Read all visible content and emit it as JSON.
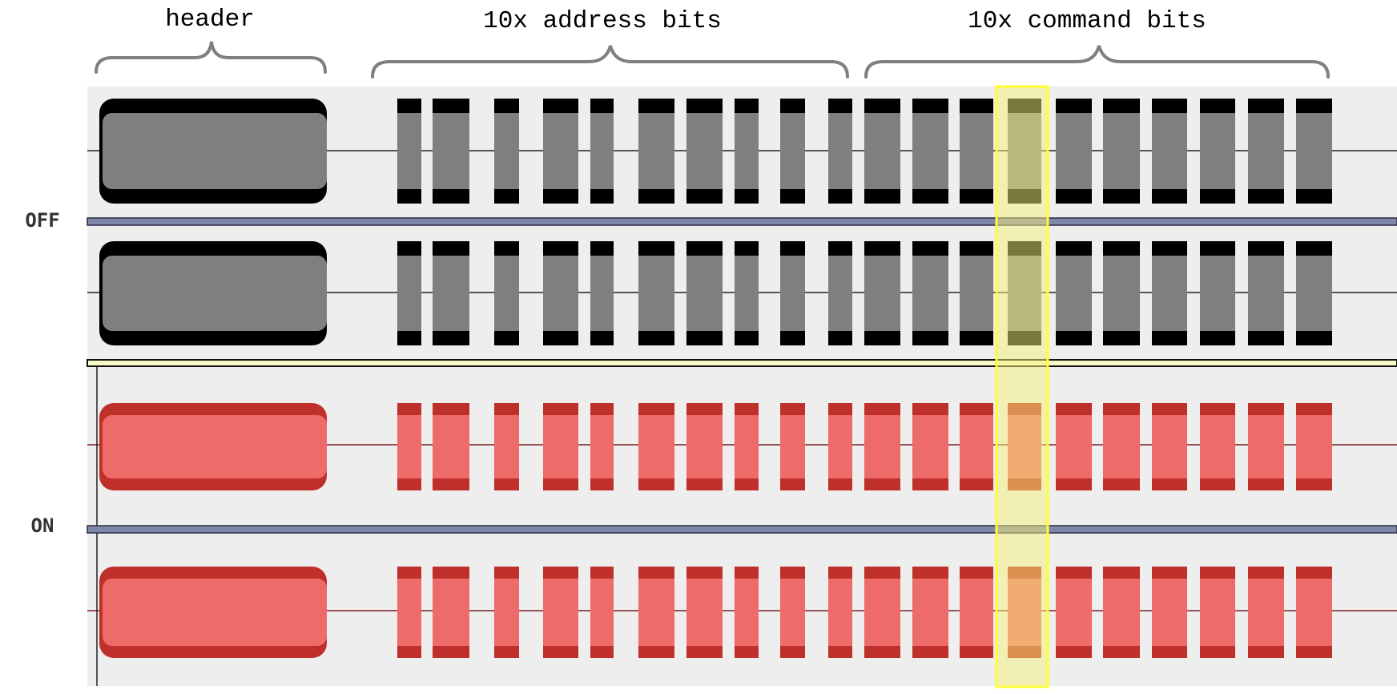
{
  "groups": {
    "header": "header",
    "address": "10x address bits",
    "command": "10x command bits"
  },
  "labels": {
    "off": "OFF",
    "on": "ON"
  },
  "colors": {
    "panel_bg": "#eeeeee",
    "off_body": "#7f7f7f",
    "off_edge": "#000000",
    "on_body": "#ed6b69",
    "on_edge": "#c0302a",
    "divider": "#8088aa",
    "highlight": "#f5f07a",
    "highlight_stroke": "#ffff33",
    "brace": "#808080"
  },
  "signal": {
    "header_pulse": true,
    "address_bit_count": 10,
    "command_bit_count": 10,
    "highlighted_command_bit": 4
  },
  "tracks": [
    {
      "label_group": "off",
      "channel": 1
    },
    {
      "label_group": "off",
      "channel": 2
    },
    {
      "label_group": "on",
      "channel": 1
    },
    {
      "label_group": "on",
      "channel": 2
    }
  ]
}
